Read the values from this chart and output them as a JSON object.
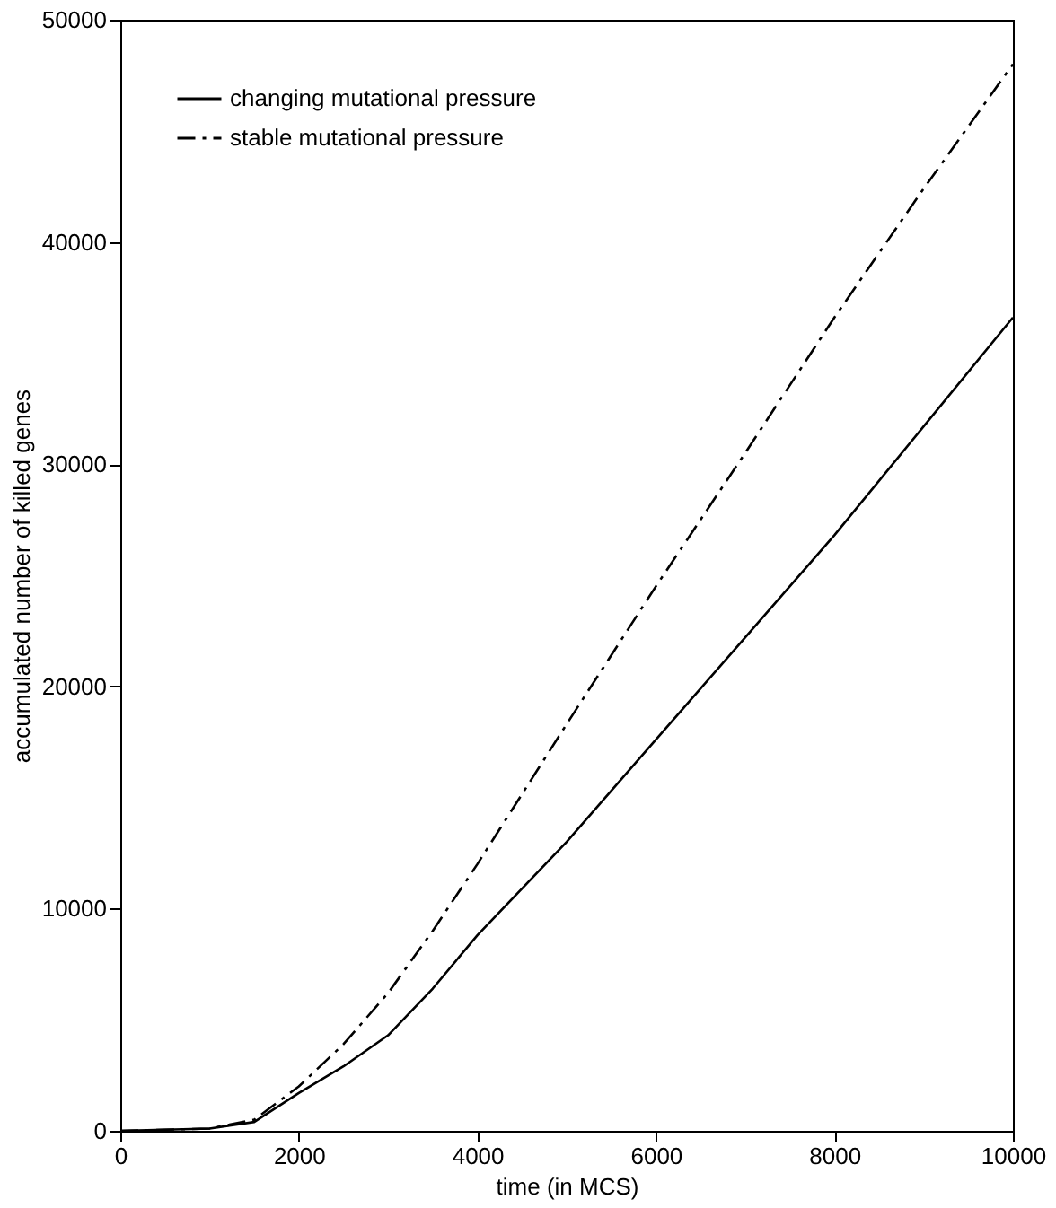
{
  "chart_data": {
    "type": "line",
    "xlabel": "time (in MCS)",
    "ylabel": "accumulated number of killed genes",
    "xlim": [
      0,
      10000
    ],
    "ylim": [
      0,
      50000
    ],
    "xticks": [
      0,
      2000,
      4000,
      6000,
      8000,
      10000
    ],
    "yticks": [
      0,
      10000,
      20000,
      30000,
      40000,
      50000
    ],
    "grid": false,
    "legend": "top left",
    "marker": "none",
    "x": [
      0,
      1000,
      1500,
      2000,
      2500,
      3000,
      3500,
      4000,
      5000,
      6000,
      7000,
      8000,
      9000,
      10000
    ],
    "series": [
      {
        "name": "changing mutational pressure",
        "color": "#000000",
        "line_style": "solid",
        "values": [
          0,
          100,
          400,
          1700,
          2900,
          4300,
          6400,
          8800,
          13000,
          17600,
          22200,
          26800,
          31700,
          36600
        ]
      },
      {
        "name": "stable mutational pressure",
        "color": "#000000",
        "line_style": "dashed",
        "values": [
          0,
          100,
          500,
          2000,
          3900,
          6200,
          9000,
          12000,
          18300,
          24500,
          30500,
          36600,
          42400,
          48000
        ]
      }
    ]
  }
}
